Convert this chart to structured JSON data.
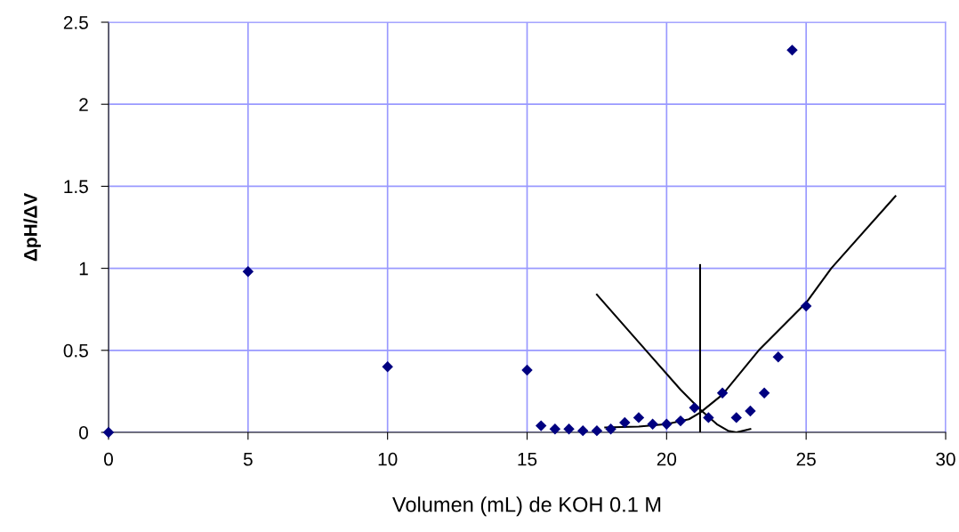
{
  "chart_data": {
    "type": "scatter",
    "xlabel": "Volumen (mL) de KOH 0.1 M",
    "ylabel": "ΔpH/ΔV",
    "xlim": [
      0,
      30
    ],
    "xticks": [
      0,
      5,
      10,
      15,
      20,
      25,
      30
    ],
    "ylim": [
      0,
      2.5
    ],
    "yticks": [
      0,
      0.5,
      1,
      1.5,
      2,
      2.5
    ],
    "grid": true,
    "marker": "diamond",
    "series": [
      {
        "color": "#000080",
        "x": [
          0,
          5,
          10,
          15,
          15.5,
          16,
          16.5,
          17,
          17.5,
          18,
          18.5,
          19,
          19.5,
          20,
          20.5,
          21,
          21.5,
          22,
          22.5,
          23,
          23.5,
          24,
          24.5,
          25
        ],
        "values": [
          0,
          0.98,
          0.4,
          0.38,
          0.04,
          0.02,
          0.02,
          0.01,
          0.01,
          0.02,
          0.06,
          0.09,
          0.05,
          0.05,
          0.07,
          0.15,
          0.09,
          0.24,
          0.09,
          0.13,
          0.24,
          0.46,
          2.33,
          0.77
        ]
      },
      {
        "type": "line",
        "color": "#000000",
        "marker": "none",
        "x": [
          17.5,
          19,
          20.5,
          21.2,
          21.8,
          22.2,
          22.5,
          23
        ],
        "values": [
          0.84,
          0.55,
          0.26,
          0.14,
          0.05,
          0.01,
          0.0,
          0.02
        ]
      },
      {
        "type": "line",
        "color": "#000000",
        "marker": "none",
        "x": [
          17.8,
          19,
          20,
          20.8,
          21.2,
          22,
          23.3,
          25,
          25.9,
          28.2
        ],
        "values": [
          0.03,
          0.035,
          0.05,
          0.08,
          0.12,
          0.23,
          0.5,
          0.79,
          1.0,
          1.44
        ]
      },
      {
        "type": "line",
        "color": "#000000",
        "marker": "none",
        "x": [
          21.2,
          21.2
        ],
        "values": [
          0,
          1.02
        ]
      }
    ]
  }
}
